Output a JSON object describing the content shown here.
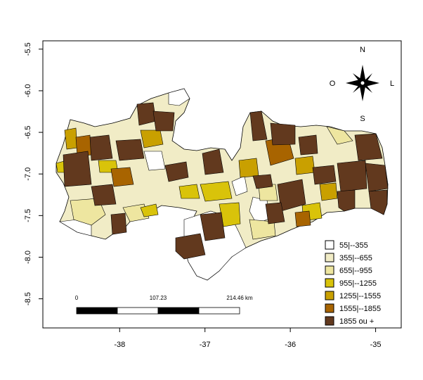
{
  "map": {
    "x_ticks": [
      "-38",
      "-37",
      "-36",
      "-35"
    ],
    "y_ticks": [
      "-5.5",
      "-6.0",
      "-6.5",
      "-7.0",
      "-7.5",
      "-8.0",
      "-8.5"
    ],
    "x_range": [
      -38.9,
      -34.7
    ],
    "y_range": [
      -8.85,
      -5.4
    ]
  },
  "compass": {
    "north": "N",
    "south": "S",
    "east": "L",
    "west": "O"
  },
  "scalebar": {
    "labels": [
      "0",
      "107.23",
      "214.46 km"
    ]
  },
  "legend": {
    "items": [
      {
        "label": "55|--355",
        "color": "#ffffff"
      },
      {
        "label": "355|--655",
        "color": "#f1ecc6"
      },
      {
        "label": "655|--955",
        "color": "#eee6a0"
      },
      {
        "label": "955|--1255",
        "color": "#d9c30a"
      },
      {
        "label": "1255|--1555",
        "color": "#c9a000"
      },
      {
        "label": "1555|--1855",
        "color": "#a86400"
      },
      {
        "label": "1855 ou +",
        "color": "#62391e"
      }
    ]
  }
}
